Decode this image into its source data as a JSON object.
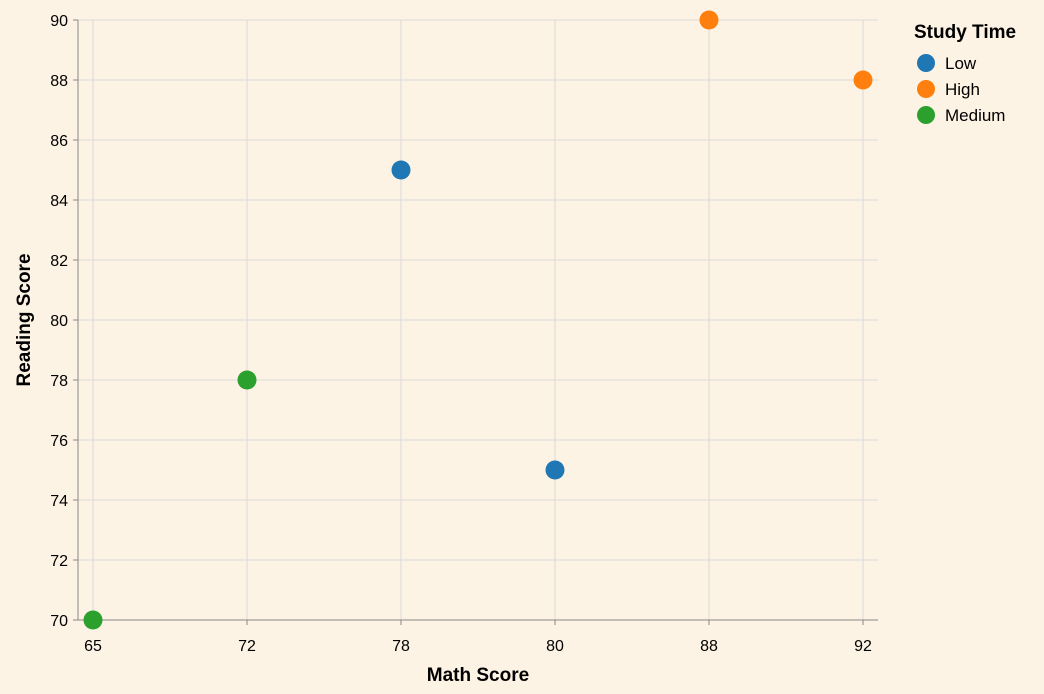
{
  "chart_data": {
    "type": "scatter",
    "xlabel": "Math Score",
    "ylabel": "Reading Score",
    "x_type": "categorical",
    "x_categories": [
      "65",
      "72",
      "78",
      "80",
      "88",
      "92"
    ],
    "y_ticks": [
      70,
      72,
      74,
      76,
      78,
      80,
      82,
      84,
      86,
      88,
      90
    ],
    "ylim": [
      70,
      90
    ],
    "grid": true,
    "legend": {
      "title": "Study Time",
      "placement": "right",
      "entries": [
        {
          "label": "Low",
          "color": "#1f77b4"
        },
        {
          "label": "High",
          "color": "#ff7f0e"
        },
        {
          "label": "Medium",
          "color": "#2ca02c"
        }
      ]
    },
    "points": [
      {
        "x": "65",
        "y": 70,
        "group": "Medium"
      },
      {
        "x": "72",
        "y": 78,
        "group": "Medium"
      },
      {
        "x": "78",
        "y": 85,
        "group": "Low"
      },
      {
        "x": "80",
        "y": 75,
        "group": "Low"
      },
      {
        "x": "88",
        "y": 90,
        "group": "High"
      },
      {
        "x": "92",
        "y": 88,
        "group": "High"
      }
    ]
  }
}
